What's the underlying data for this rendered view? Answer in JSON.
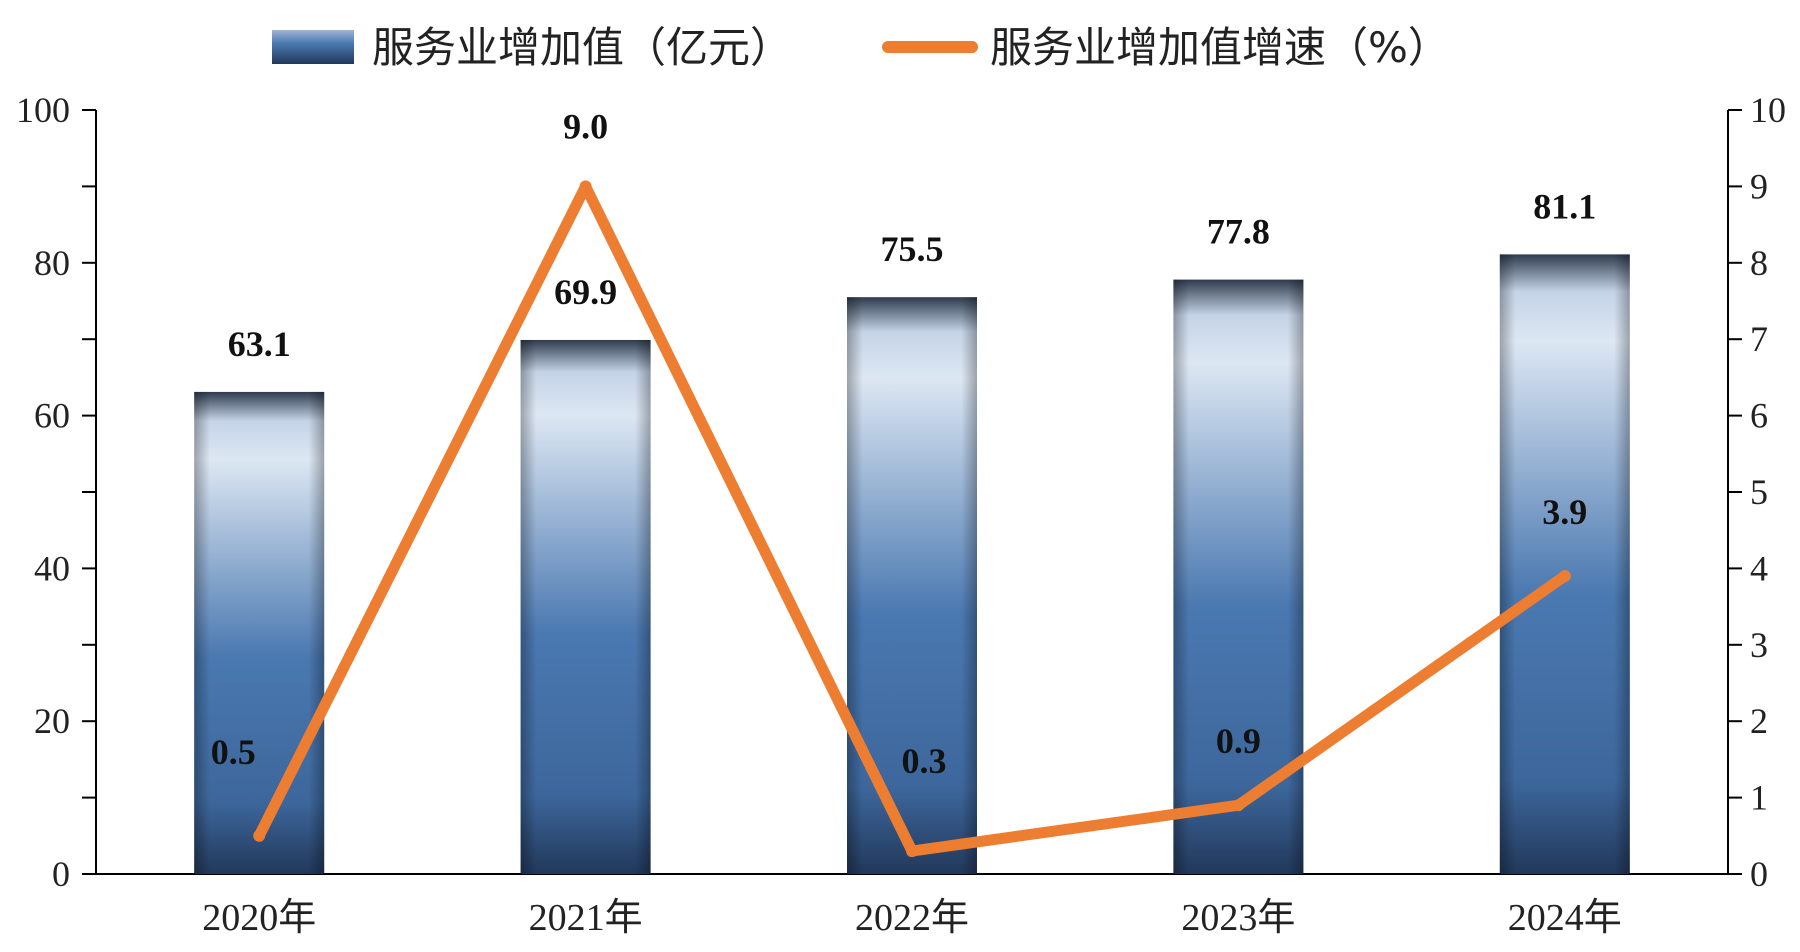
{
  "chart_data": {
    "type": "bar",
    "categories": [
      "2020年",
      "2021年",
      "2022年",
      "2023年",
      "2024年"
    ],
    "series": [
      {
        "name": "服务业增加值（亿元）",
        "type": "bar",
        "axis": "left",
        "values": [
          63.1,
          69.9,
          75.5,
          77.8,
          81.1
        ],
        "labels": [
          "63.1",
          "69.9",
          "75.5",
          "77.8",
          "81.1"
        ],
        "color_dark": "#2b4a72",
        "color_mid": "#4a78b0",
        "color_light": "#dde7f3"
      },
      {
        "name": "服务业增加值增速（%）",
        "type": "line",
        "axis": "right",
        "values": [
          0.5,
          9.0,
          0.3,
          0.9,
          3.9
        ],
        "labels": [
          "0.5",
          "9.0",
          "0.3",
          "0.9",
          "3.9"
        ],
        "color": "#ed7d31"
      }
    ],
    "y_left": {
      "min": 0,
      "max": 100,
      "ticks": [
        "0",
        "20",
        "40",
        "60",
        "80",
        "100"
      ]
    },
    "y_right": {
      "min": 0,
      "max": 10,
      "ticks": [
        "0",
        "1",
        "2",
        "3",
        "4",
        "5",
        "6",
        "7",
        "8",
        "9",
        "10"
      ]
    },
    "legend_position": "top-center",
    "grid": false
  }
}
